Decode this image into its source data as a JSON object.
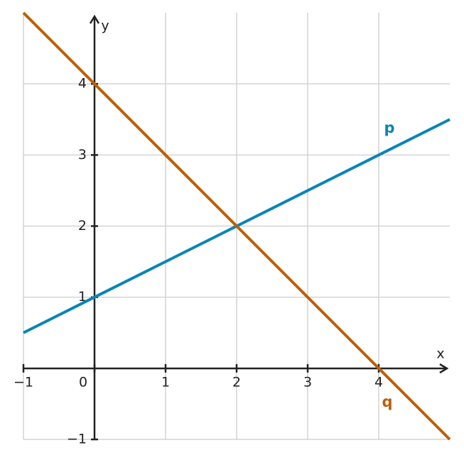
{
  "chart_data": {
    "type": "line",
    "x_label": "x",
    "y_label": "y",
    "x": [
      -1,
      5
    ],
    "series": [
      {
        "name": "p",
        "color": "#0b84b6",
        "values": [
          0.5,
          3.5
        ]
      },
      {
        "name": "q",
        "color": "#b8600b",
        "values": [
          5,
          -1
        ]
      }
    ],
    "xlim": [
      -1,
      5
    ],
    "ylim": [
      -1,
      5
    ],
    "xticks": [
      {
        "value": -1,
        "label": "−1"
      },
      0,
      1,
      2,
      3,
      4
    ],
    "yticks": [
      {
        "value": -1,
        "label": "−1"
      },
      1,
      2,
      3,
      4
    ],
    "grid": true
  }
}
